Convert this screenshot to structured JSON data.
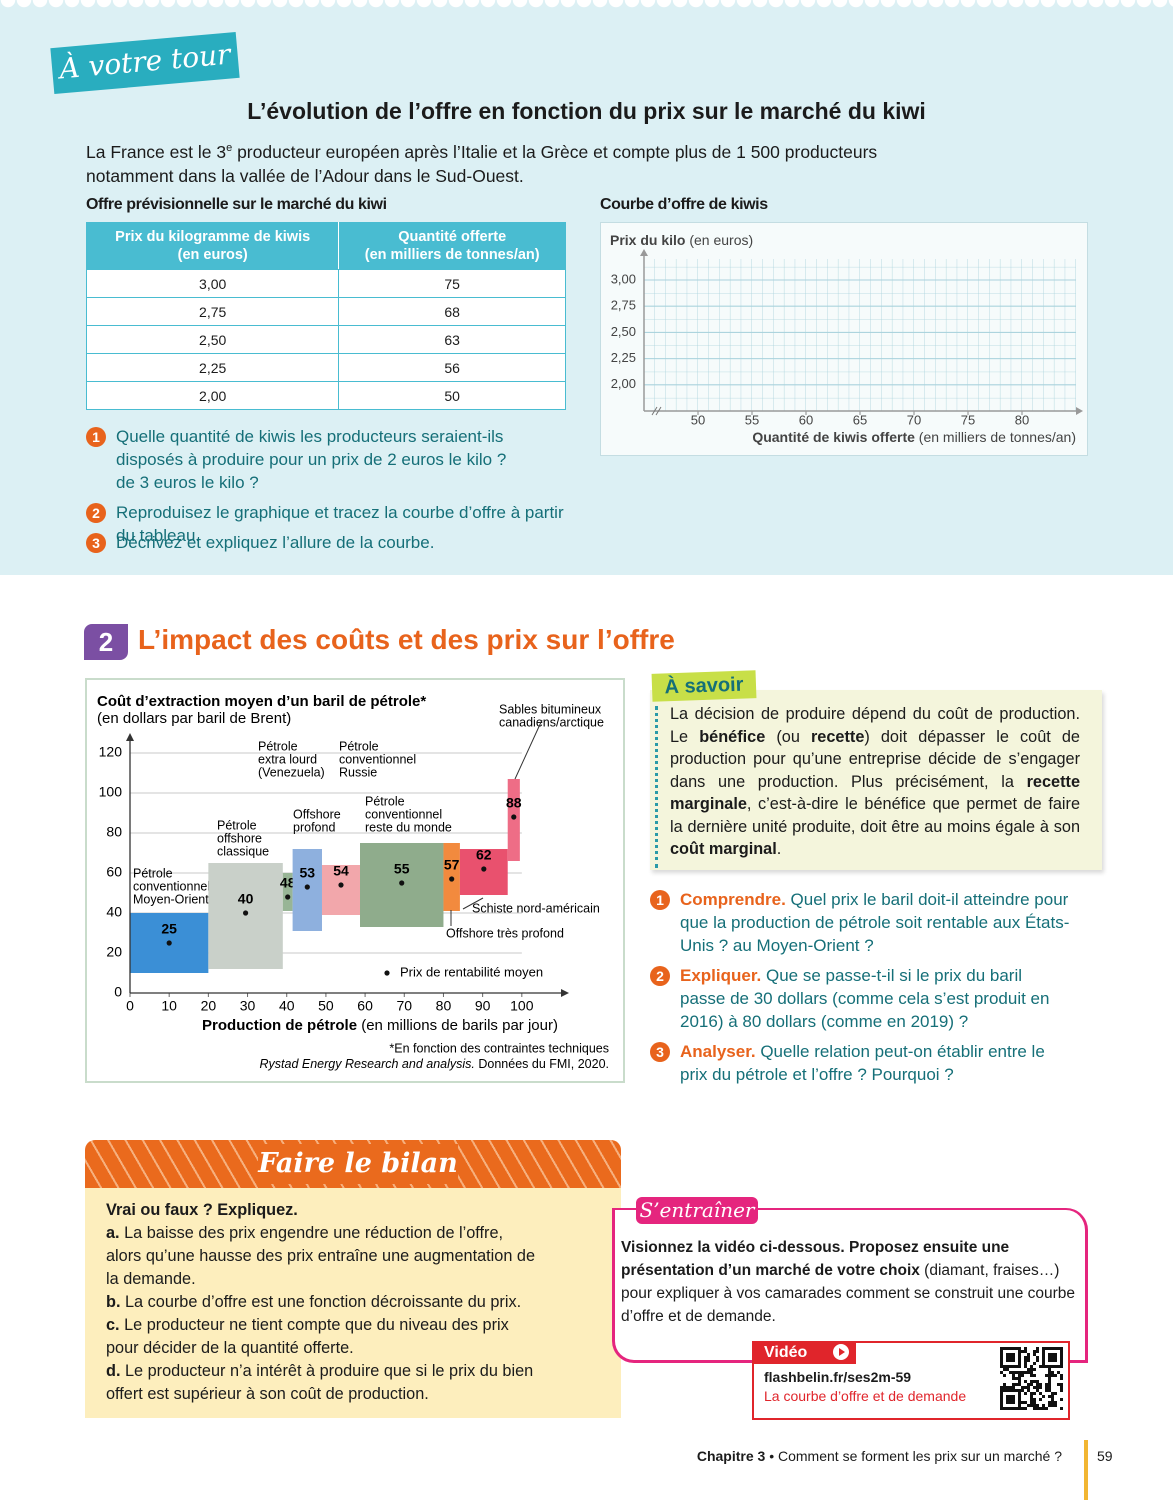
{
  "header": {
    "banner": "À votre tour",
    "title": "L’évolution de l’offre en fonction du prix sur le marché du kiwi",
    "intro": [
      "La France est le 3",
      "e",
      " producteur européen après l’Italie et la Grèce et compte plus de 1 500 producteurs notamment dans la vallée de l’Adour dans le Sud-Ouest."
    ]
  },
  "table": {
    "title": "Offre prévisionnelle sur le marché du kiwi",
    "headers": [
      [
        "Prix du kilogramme de kiwis",
        "(en euros)"
      ],
      [
        "Quantité offerte",
        "(en milliers de tonnes/an)"
      ]
    ],
    "rows": [
      [
        "3,00",
        "75"
      ],
      [
        "2,75",
        "68"
      ],
      [
        "2,50",
        "63"
      ],
      [
        "2,25",
        "56"
      ],
      [
        "2,00",
        "50"
      ]
    ]
  },
  "kiwi_chart": {
    "type": "grid",
    "title": "Courbe d’offre de kiwis",
    "y_label": [
      "Prix du kilo",
      " (en euros)"
    ],
    "x_label": [
      "Quantité de kiwis offerte",
      " (en milliers de tonnes/an)"
    ],
    "xlim": [
      45,
      85
    ],
    "ylim": [
      1.75,
      3.2
    ],
    "xticks": [
      50,
      55,
      60,
      65,
      70,
      75,
      80
    ],
    "yticks": [
      {
        "value": 2,
        "label": "2,00"
      },
      {
        "value": 2.25,
        "label": "2,25"
      },
      {
        "value": 2.5,
        "label": "2,50"
      },
      {
        "value": 2.75,
        "label": "2,75"
      },
      {
        "value": 3,
        "label": "3,00"
      }
    ],
    "grid": true
  },
  "questions": [
    {
      "number": "1",
      "text": "Quelle quantité de kiwis les producteurs seraient-ils disposés à produire pour un prix de 2 euros le kilo ? de 3 euros le kilo ?"
    },
    {
      "number": "2",
      "text": "Reproduisez le graphique et tracez la courbe d’offre à partir du tableau."
    },
    {
      "number": "3",
      "text": "Décrivez et expliquez l’allure de la courbe."
    }
  ],
  "section2": {
    "number": "2",
    "title": "L’impact des coûts et des prix sur l’offre"
  },
  "oil_chart": {
    "type": "variwide",
    "title": "Coût d’extraction moyen d’un baril de pétrole*",
    "subtitle": "(en dollars par baril de Brent)",
    "x_label": [
      "Production de pétrole",
      " (en millions de barils par jour)"
    ],
    "legend": "Prix de rentabilité moyen",
    "note": "*En fonction des contraintes techniques",
    "source": [
      "Rystad Energy Research and analysis.",
      " Données du FMI, 2020."
    ],
    "xlim": [
      0,
      110
    ],
    "ylim": [
      0,
      125
    ],
    "xticks": [
      0,
      10,
      20,
      30,
      40,
      50,
      60,
      70,
      80,
      90,
      100
    ],
    "yticks": [
      0,
      20,
      40,
      60,
      80,
      100,
      120
    ],
    "grid": true,
    "segments": [
      {
        "label": [
          "Pétrole",
          "conventionnel",
          "Moyen-Orient"
        ],
        "x": [
          0,
          20
        ],
        "range": [
          10,
          40
        ],
        "value": 25,
        "color": "#3b8fd6"
      },
      {
        "label": [
          "Pétrole",
          "offshore",
          "classique"
        ],
        "x": [
          20,
          39
        ],
        "range": [
          12,
          65
        ],
        "value": 40,
        "color": "#c9d0c9"
      },
      {
        "label": [
          "Pétrole",
          "extra lourd",
          "(Venezuela)"
        ],
        "x": [
          39,
          41.5
        ],
        "range": [
          41,
          60
        ],
        "value": 48,
        "color": "#98b596"
      },
      {
        "label": [
          "Offshore",
          "profond"
        ],
        "x": [
          41.5,
          49
        ],
        "range": [
          31,
          72
        ],
        "value": 53,
        "color": "#8eb0de"
      },
      {
        "label": [
          "Pétrole",
          "conventionnel",
          "Russie"
        ],
        "x": [
          49,
          58.7
        ],
        "range": [
          39,
          64
        ],
        "value": 54,
        "color": "#f2a7ab"
      },
      {
        "label": [
          "Pétrole",
          "conventionnel",
          "reste du monde"
        ],
        "x": [
          58.7,
          80
        ],
        "range": [
          33,
          75
        ],
        "value": 55,
        "color": "#8fac8c"
      },
      {
        "label": [
          "Offshore très profond"
        ],
        "x": [
          80,
          84.2
        ],
        "range": [
          41,
          75
        ],
        "value": 57,
        "color": "#f28a3e"
      },
      {
        "label": [
          "Schiste nord-américain"
        ],
        "x": [
          84.2,
          96.4
        ],
        "range": [
          49,
          72
        ],
        "value": 62,
        "color": "#e9516e"
      },
      {
        "label": [
          "Sables bitumineux",
          "canadiens/arctique"
        ],
        "x": [
          96.4,
          99.5
        ],
        "range": [
          66,
          107
        ],
        "value": 88,
        "color": "#ee6d86"
      }
    ]
  },
  "a_savoir": {
    "title": "À savoir",
    "text": [
      {
        "text": "La décision de produire dépend du coût de production. Le "
      },
      {
        "text": "bénéfice",
        "bold": true
      },
      {
        "text": " (ou "
      },
      {
        "text": "recette",
        "bold": true
      },
      {
        "text": ") doit dépasser le coût de production pour qu’une entreprise décide de s’engager dans une production. Plus précisément, la "
      },
      {
        "text": "recette marginale",
        "bold": true
      },
      {
        "text": ", c’est-à-dire le bénéfice que permet de faire la dernière unité produite, doit être au moins égale à son "
      },
      {
        "text": "coût marginal",
        "bold": true
      },
      {
        "text": "."
      }
    ]
  },
  "questions2": [
    {
      "number": "1",
      "verb": "Comprendre.",
      "text": " Quel prix le baril doit-il atteindre pour que la production de pétrole soit rentable aux États-Unis ? au Moyen-Orient ?"
    },
    {
      "number": "2",
      "verb": "Expliquer.",
      "text": " Que se passe-t-il si le prix du baril passe de 30 dollars (comme cela s’est produit en 2016) à 80 dollars (comme en 2019) ?"
    },
    {
      "number": "3",
      "verb": "Analyser.",
      "text": " Quelle relation peut-on établir entre le prix du pétrole et l’offre ? Pourquoi ?"
    }
  ],
  "bilan": {
    "title": "Faire le bilan",
    "prompt": "Vrai ou faux ? Expliquez.",
    "items": [
      {
        "letter": "a.",
        "text": " La baisse des prix engendre une réduction de l’offre, alors qu’une hausse des prix entraîne une augmentation de la demande."
      },
      {
        "letter": "b.",
        "text": " La courbe d’offre est une fonction décroissante du prix."
      },
      {
        "letter": "c.",
        "text": " Le producteur ne tient compte que du niveau des prix pour décider de la quantité offerte."
      },
      {
        "letter": "d.",
        "text": " Le producteur n’a intérêt à produire que si le prix du bien offert est supérieur à son coût de production."
      }
    ]
  },
  "entrainer": {
    "title": "S’entraîner",
    "text": [
      {
        "text": "Visionnez la vidéo ci-dessous. Proposez ensuite une présentation d’un marché de votre choix",
        "bold": true
      },
      {
        "text": " (diamant, fraises…) pour expliquer à vos camarades comment se construit une courbe d’offre et de demande."
      }
    ],
    "video": {
      "label": "Vidéo",
      "url": "flashbelin.fr/ses2m-59",
      "caption": "La courbe d’offre et de demande"
    }
  },
  "footer": {
    "chapter": "Chapitre 3",
    "title": " • Comment se forment les prix sur un marché ?",
    "page": "59"
  }
}
